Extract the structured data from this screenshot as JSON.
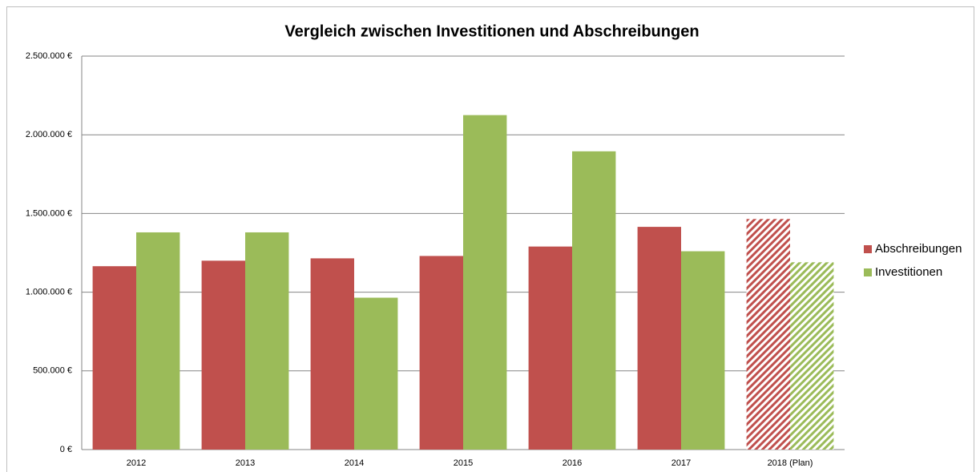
{
  "chart_data": {
    "type": "bar",
    "title": "Vergleich zwischen Investitionen und Abschreibungen",
    "categories": [
      "2012",
      "2013",
      "2014",
      "2015",
      "2016",
      "2017",
      "2018 (Plan)"
    ],
    "series": [
      {
        "name": "Abschreibungen",
        "color": "#c0504d",
        "values": [
          1165000,
          1200000,
          1215000,
          1230000,
          1290000,
          1415000,
          1465000
        ]
      },
      {
        "name": "Investitionen",
        "color": "#9bbb59",
        "values": [
          1380000,
          1380000,
          965000,
          2125000,
          1895000,
          1260000,
          1190000
        ]
      }
    ],
    "hatched": [
      false,
      false,
      false,
      false,
      false,
      false,
      true
    ],
    "ylim": [
      0,
      2500000
    ],
    "yticks": [
      {
        "value": 0,
        "label": "0 €"
      },
      {
        "value": 500000,
        "label": "500.000 €"
      },
      {
        "value": 1000000,
        "label": "1.000.000 €"
      },
      {
        "value": 1500000,
        "label": "1.500.000 €"
      },
      {
        "value": 2000000,
        "label": "2.000.000 €"
      },
      {
        "value": 2500000,
        "label": "2.500.000 €"
      }
    ],
    "grid": true,
    "legend": "right"
  }
}
